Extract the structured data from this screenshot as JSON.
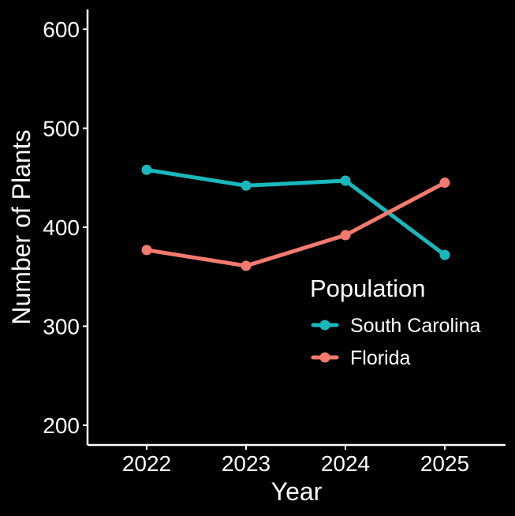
{
  "chart_data": {
    "type": "line",
    "title": "",
    "xlabel": "Year",
    "ylabel": "Number of Plants",
    "x": [
      2022,
      2023,
      2024,
      2025
    ],
    "x_tick_labels": [
      "2022",
      "2023",
      "2024",
      "2025"
    ],
    "ylim": [
      180,
      620
    ],
    "y_ticks": [
      200,
      300,
      400,
      500,
      600
    ],
    "y_tick_labels": [
      "200",
      "300",
      "400",
      "500",
      "600"
    ],
    "grid": false,
    "legend": {
      "title": "Population",
      "placement": "right"
    },
    "series": [
      {
        "name": "South Carolina",
        "color": "#1ab8bd",
        "values": [
          458,
          442,
          447,
          372
        ]
      },
      {
        "name": "Florida",
        "color": "#f47a6e",
        "values": [
          377,
          361,
          392,
          445
        ]
      }
    ],
    "background": "#000000",
    "foreground": "#ffffff"
  }
}
